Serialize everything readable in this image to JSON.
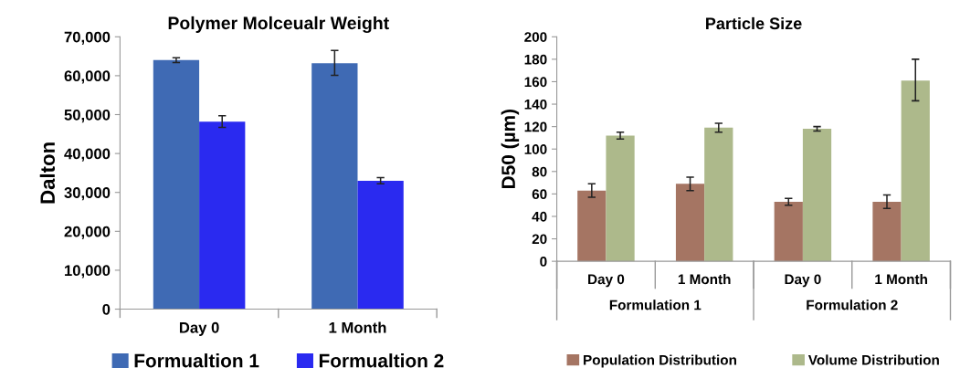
{
  "chart_data": [
    {
      "type": "bar",
      "title": "Polymer Molceualr Weight",
      "ylabel": "Dalton",
      "categories": [
        "Day 0",
        "1 Month"
      ],
      "series": [
        {
          "name": "Formualtion 1",
          "color": "#3f6ab4",
          "values": [
            64000,
            63200
          ],
          "errors": [
            600,
            [
              60100,
              66500
            ]
          ]
        },
        {
          "name": "Formualtion 2",
          "color": "#2a2af0",
          "values": [
            48200,
            33000
          ],
          "errors": [
            1500,
            800
          ]
        }
      ],
      "ylim": [
        0,
        70000
      ],
      "yticks": [
        {
          "value": 0,
          "label": "0"
        },
        {
          "value": 10000,
          "label": "10,000"
        },
        {
          "value": 20000,
          "label": "20,000"
        },
        {
          "value": 30000,
          "label": "30,000"
        },
        {
          "value": 40000,
          "label": "40,000"
        },
        {
          "value": 50000,
          "label": "50,000"
        },
        {
          "value": 60000,
          "label": "60,000"
        },
        {
          "value": 70000,
          "label": "70,000"
        }
      ],
      "grid": false,
      "legend": "bottom"
    },
    {
      "type": "bar",
      "title": "Particle Size",
      "ylabel": "D50 (µm)",
      "categories": [
        "Day 0",
        "1 Month",
        "Day 0",
        "1 Month"
      ],
      "annotations": [
        "Formulation 1",
        "Formulation 2"
      ],
      "series": [
        {
          "name": "Population Distribution",
          "color": "#a57563",
          "values": [
            63,
            69,
            53,
            53
          ],
          "errors": [
            6,
            6,
            3,
            6
          ]
        },
        {
          "name": "Volume Distribution",
          "color": "#adb98b",
          "values": [
            112,
            119,
            118,
            161
          ],
          "errors": [
            3,
            4,
            2,
            [
              143,
              180
            ]
          ]
        }
      ],
      "ylim": [
        0,
        200
      ],
      "yticks": [
        0,
        20,
        40,
        60,
        80,
        100,
        120,
        140,
        160,
        180,
        200
      ],
      "grid": false,
      "legend": "bottom"
    }
  ]
}
